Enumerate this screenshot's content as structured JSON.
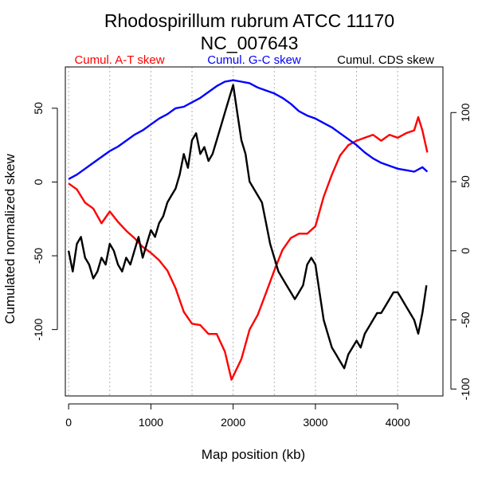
{
  "chart_data": {
    "type": "line",
    "title": "Rhodospirillum rubrum ATCC 11170",
    "subtitle": "NC_007643",
    "xlabel": "Map position (kb)",
    "ylabel": "Cumulated normalized skew",
    "xlim": [
      -40,
      4550
    ],
    "ylim_left": [
      -145,
      78
    ],
    "ylim_right": [
      -105,
      133
    ],
    "grid": "vertical dotted every 500 kb",
    "x_ticks": [
      0,
      1000,
      2000,
      3000,
      4000
    ],
    "y_ticks_left": [
      -100,
      -50,
      0,
      50
    ],
    "y_ticks_right": [
      -100,
      -50,
      0,
      50,
      100
    ],
    "grid_x": [
      0,
      500,
      1000,
      1500,
      2000,
      2500,
      3000,
      3500,
      4000
    ],
    "legend": [
      {
        "label": "Cumul. A-T skew",
        "color": "#ff0000"
      },
      {
        "label": "Cumul. G-C skew",
        "color": "#0000ff"
      },
      {
        "label": "Cumul. CDS skew",
        "color": "#000000"
      }
    ],
    "series": [
      {
        "name": "Cumul. A-T skew",
        "axis": "left",
        "color": "#ff0000",
        "x": [
          0,
          100,
          200,
          300,
          400,
          500,
          600,
          700,
          800,
          900,
          1000,
          1100,
          1200,
          1300,
          1400,
          1500,
          1600,
          1700,
          1800,
          1900,
          1980,
          2100,
          2200,
          2300,
          2400,
          2500,
          2600,
          2700,
          2800,
          2900,
          3000,
          3100,
          3200,
          3300,
          3400,
          3500,
          3600,
          3700,
          3800,
          3900,
          4000,
          4100,
          4200,
          4250,
          4300,
          4360
        ],
        "y": [
          -1,
          -5,
          -14,
          -18,
          -28,
          -20,
          -27,
          -33,
          -38,
          -44,
          -48,
          -53,
          -60,
          -72,
          -88,
          -96,
          -97,
          -103,
          -103,
          -115,
          -134,
          -120,
          -100,
          -90,
          -75,
          -60,
          -46,
          -38,
          -35,
          -35,
          -30,
          -10,
          5,
          18,
          25,
          28,
          30,
          32,
          28,
          32,
          30,
          33,
          35,
          44,
          35,
          20
        ]
      },
      {
        "name": "Cumul. G-C skew",
        "axis": "left",
        "color": "#0000ff",
        "x": [
          0,
          100,
          200,
          300,
          400,
          500,
          600,
          700,
          800,
          900,
          1000,
          1100,
          1200,
          1300,
          1400,
          1500,
          1600,
          1700,
          1800,
          1900,
          2000,
          2100,
          2200,
          2300,
          2400,
          2500,
          2600,
          2700,
          2800,
          2900,
          3000,
          3100,
          3200,
          3300,
          3400,
          3500,
          3600,
          3700,
          3800,
          3900,
          4000,
          4100,
          4200,
          4300,
          4360
        ],
        "y": [
          2,
          5,
          9,
          13,
          17,
          21,
          24,
          28,
          32,
          35,
          39,
          43,
          46,
          50,
          51,
          54,
          57,
          61,
          65,
          68,
          69,
          68,
          67,
          64,
          62,
          60,
          57,
          53,
          48,
          45,
          43,
          40,
          37,
          33,
          29,
          25,
          20,
          16,
          13,
          11,
          9,
          8,
          7,
          10,
          7
        ]
      },
      {
        "name": "Cumul. CDS skew",
        "axis": "right",
        "color": "#000000",
        "x": [
          0,
          50,
          100,
          150,
          200,
          250,
          300,
          350,
          400,
          450,
          500,
          550,
          600,
          650,
          700,
          750,
          800,
          850,
          900,
          950,
          1000,
          1050,
          1100,
          1150,
          1200,
          1250,
          1300,
          1350,
          1400,
          1450,
          1500,
          1550,
          1600,
          1650,
          1700,
          1750,
          1800,
          1850,
          1900,
          1950,
          2000,
          2050,
          2100,
          2150,
          2200,
          2250,
          2300,
          2350,
          2400,
          2450,
          2500,
          2550,
          2600,
          2650,
          2700,
          2750,
          2800,
          2850,
          2900,
          2950,
          3000,
          3050,
          3100,
          3150,
          3200,
          3250,
          3300,
          3350,
          3400,
          3450,
          3500,
          3550,
          3600,
          3650,
          3700,
          3750,
          3800,
          3850,
          3900,
          3950,
          4000,
          4050,
          4100,
          4150,
          4200,
          4250,
          4300,
          4350
        ],
        "y": [
          0,
          -15,
          5,
          10,
          -5,
          -10,
          -20,
          -15,
          -5,
          -10,
          5,
          0,
          -10,
          -15,
          -5,
          -10,
          0,
          10,
          -5,
          5,
          15,
          10,
          20,
          25,
          35,
          40,
          45,
          55,
          70,
          60,
          80,
          85,
          70,
          75,
          65,
          70,
          80,
          90,
          100,
          110,
          120,
          100,
          80,
          70,
          50,
          45,
          40,
          35,
          20,
          5,
          -5,
          -15,
          -20,
          -25,
          -30,
          -35,
          -30,
          -25,
          -10,
          -5,
          -10,
          -30,
          -50,
          -60,
          -70,
          -75,
          -80,
          -85,
          -75,
          -70,
          -65,
          -70,
          -60,
          -55,
          -50,
          -45,
          -45,
          -40,
          -35,
          -30,
          -30,
          -35,
          -40,
          -45,
          -50,
          -60,
          -45,
          -25
        ]
      }
    ]
  }
}
